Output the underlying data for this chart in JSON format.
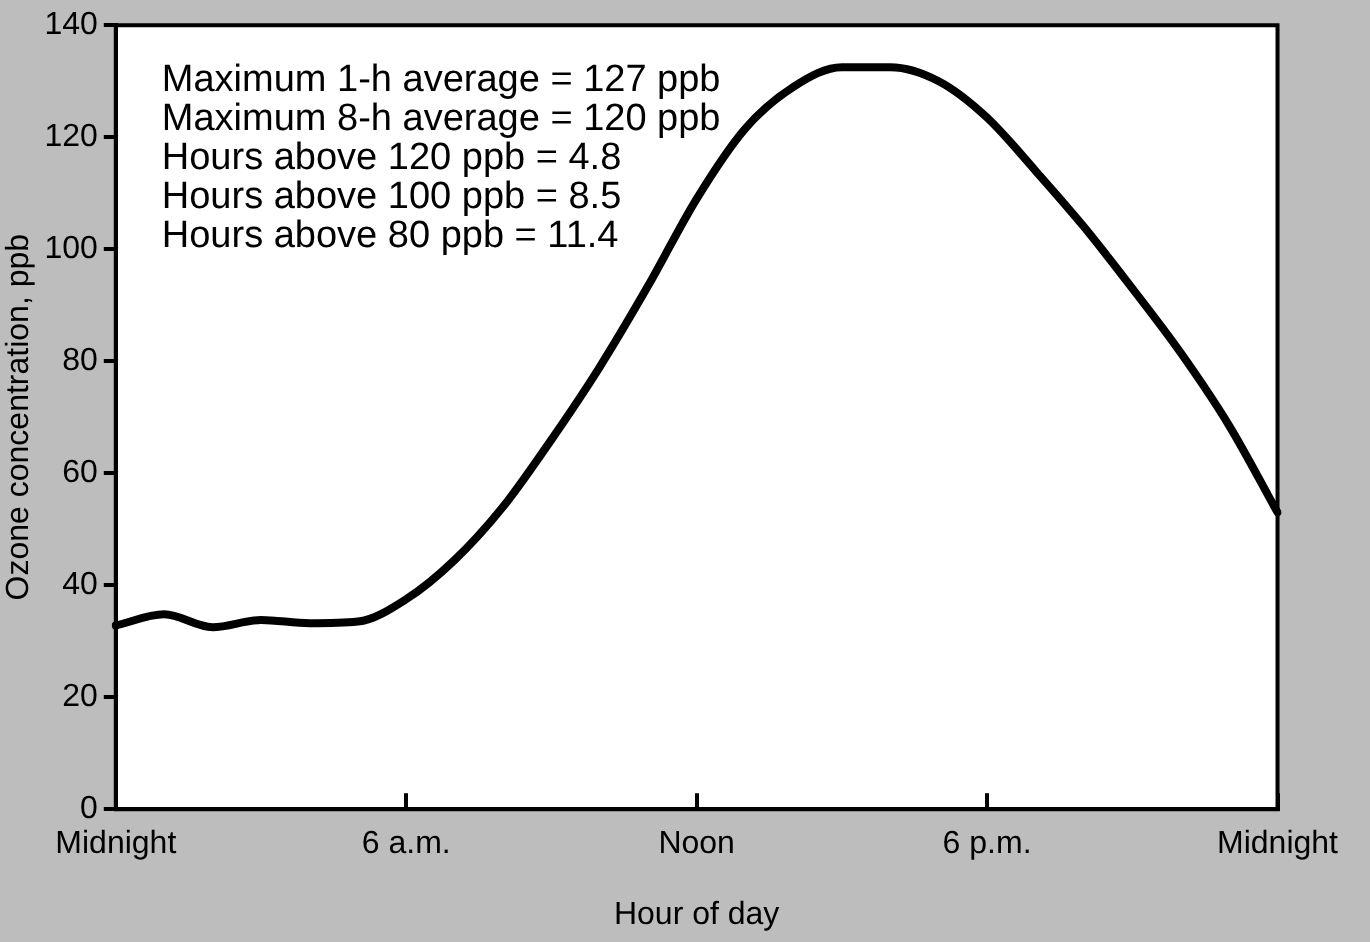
{
  "chart_data": {
    "type": "line",
    "xlabel": "Hour of day",
    "ylabel": "Ozone concentration, ppb",
    "annotations": [
      "Maximum 1-h average = 127 ppb",
      "Maximum 8-h average = 120 ppb",
      "Hours above 120 ppb = 4.8",
      "Hours above 100 ppb = 8.5",
      "Hours above 80 ppb = 11.4"
    ],
    "categories": [
      "Midnight",
      null,
      null,
      null,
      null,
      null,
      "6 a.m.",
      null,
      null,
      null,
      null,
      null,
      "Noon",
      null,
      null,
      null,
      null,
      null,
      "6 p.m.",
      null,
      null,
      null,
      null,
      null,
      "Midnight"
    ],
    "series": [
      {
        "color": "#000000",
        "values": [
          32.8,
          34.8,
          32.5,
          33.8,
          33.2,
          33.5,
          37.5,
          44.5,
          54,
          66,
          79,
          93.5,
          109,
          121.5,
          129,
          132.5,
          132.5,
          130,
          123.5,
          114,
          104,
          93,
          81.5,
          68.5,
          53
        ]
      }
    ],
    "ylim": [
      0,
      140
    ],
    "yticks": [
      0,
      20,
      40,
      60,
      80,
      100,
      120,
      140
    ],
    "grid": false,
    "legend": false,
    "marker": "none",
    "line_style": "solid"
  }
}
